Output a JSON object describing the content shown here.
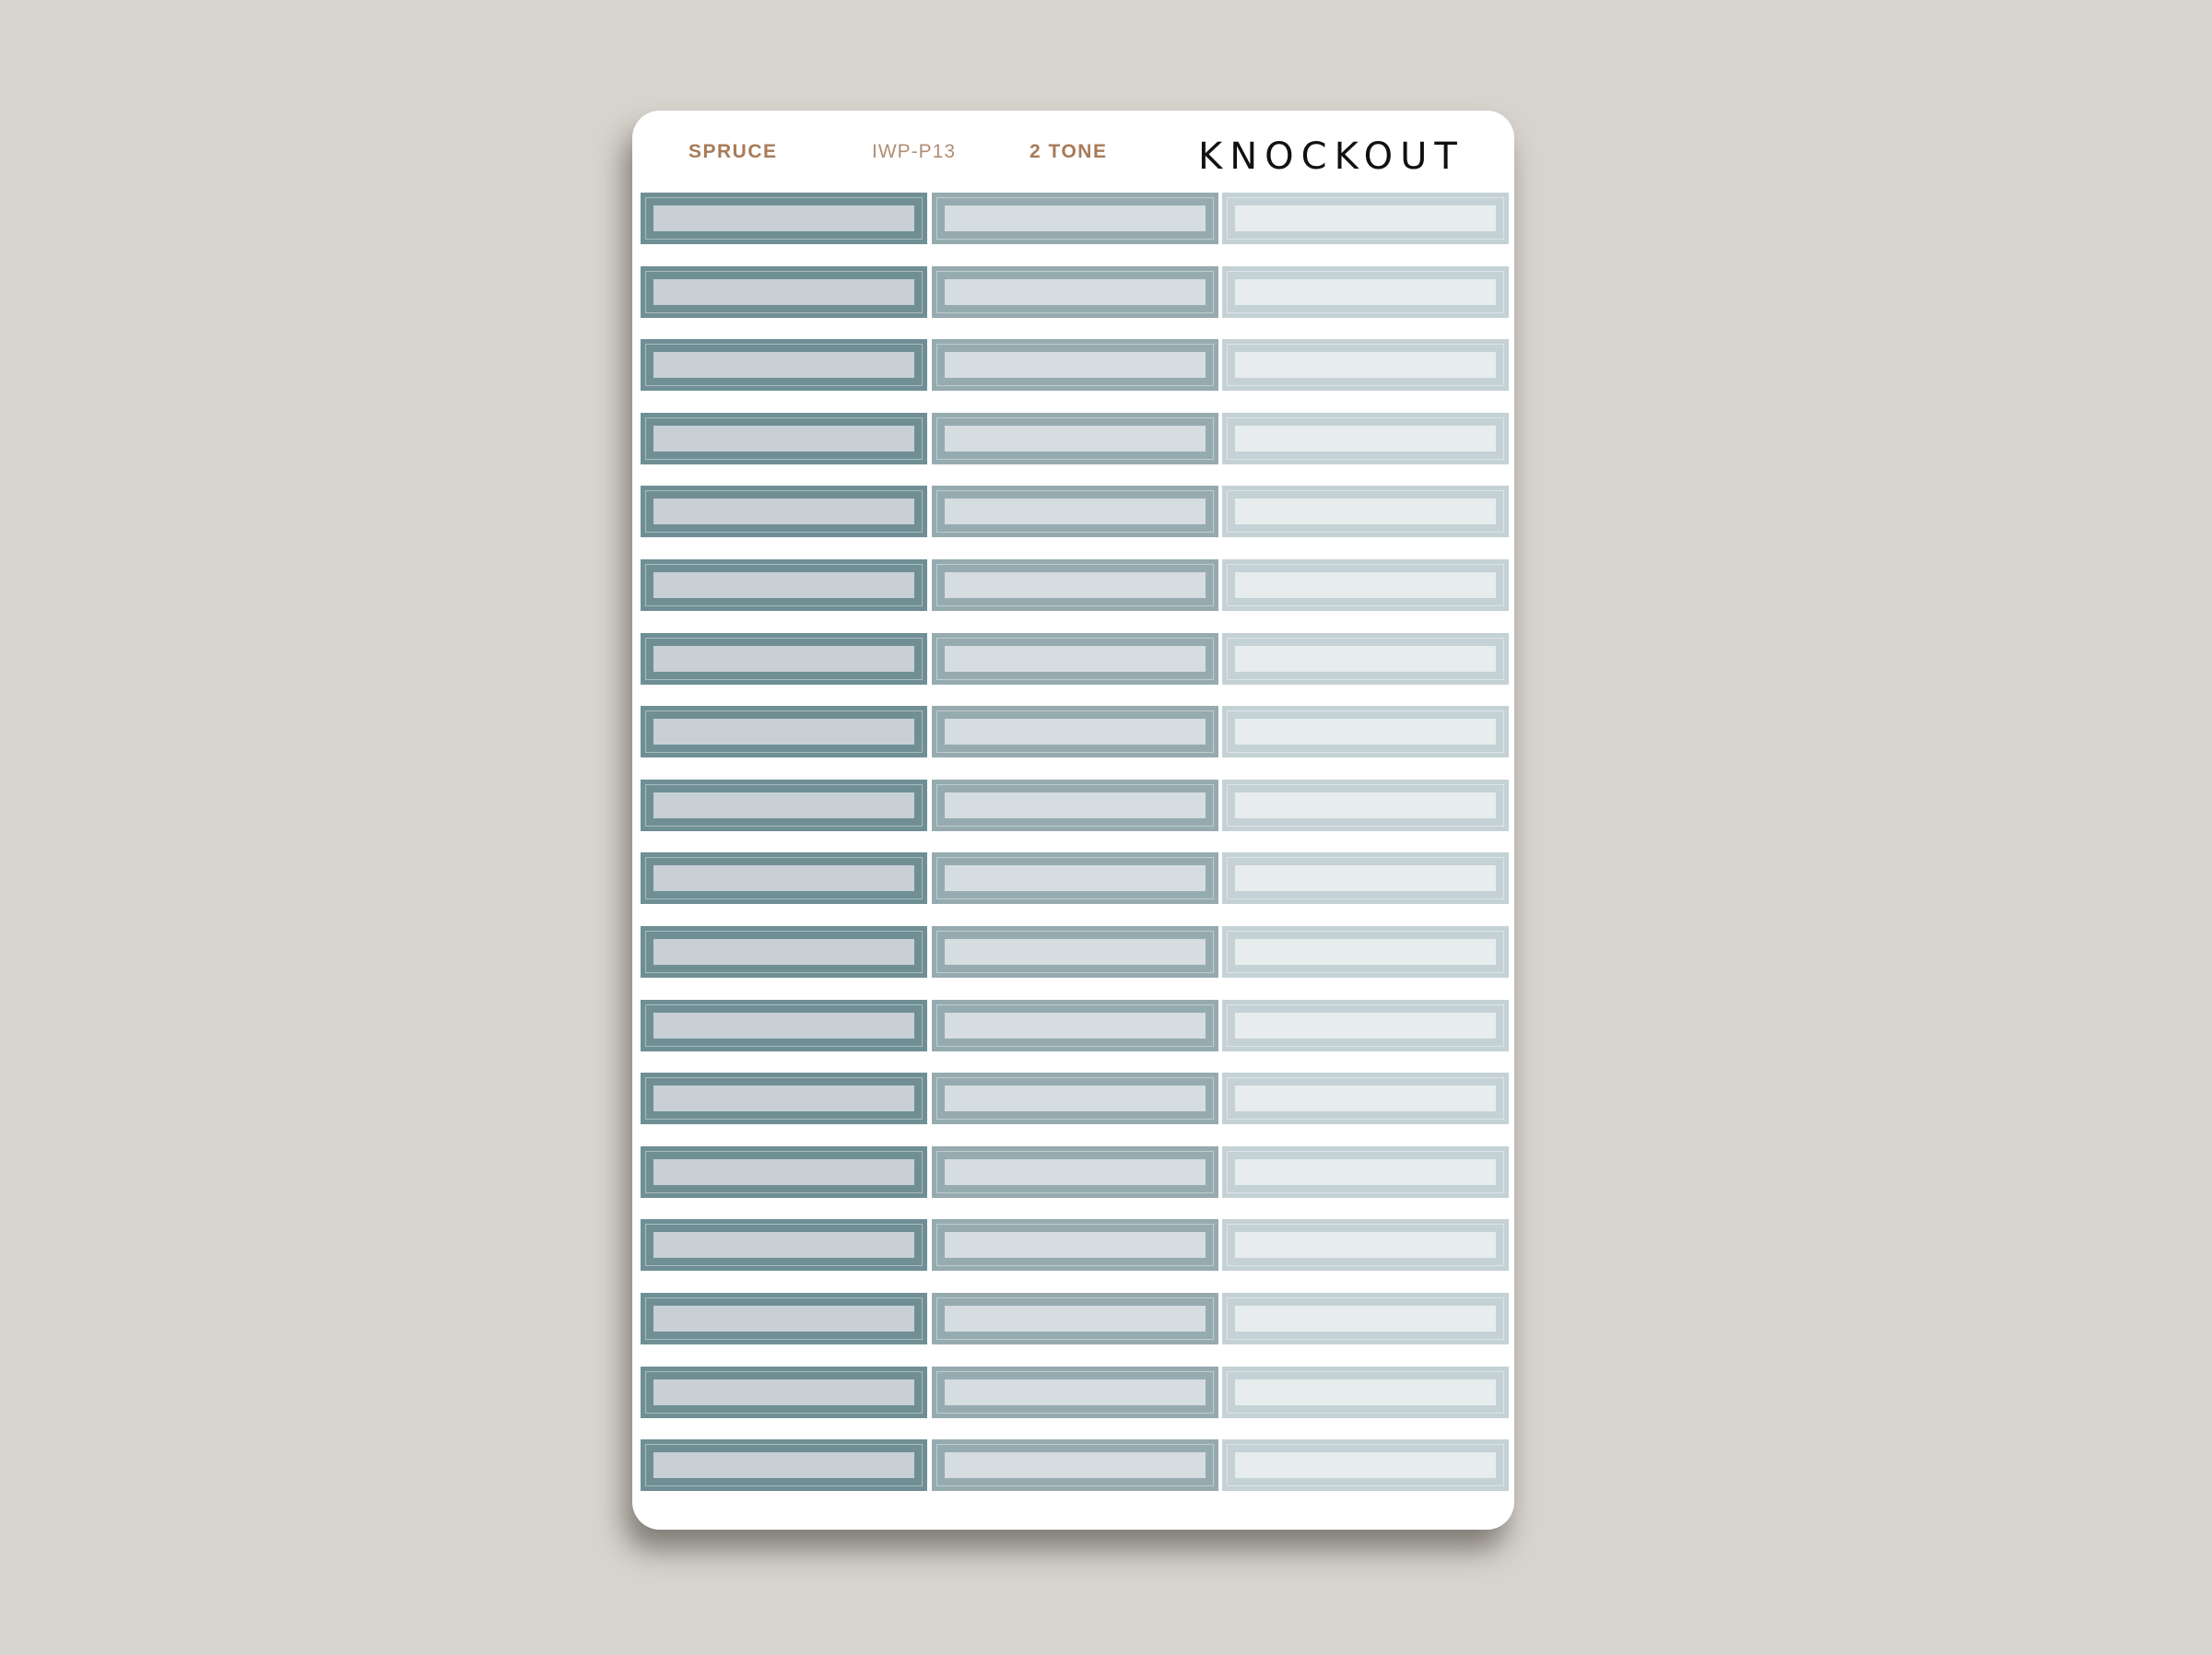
{
  "header": {
    "color_name": "SPRUCE",
    "product_code": "IWP-P13",
    "style": "2 TONE",
    "brand": "KNOCKOUT"
  },
  "colors": {
    "background": "#d7d3cd",
    "label_text": "#a87a58"
  },
  "sticker_rows": 18,
  "columns": [
    {
      "shade": "dark",
      "outer": "#6f8f95",
      "inner": "#c8d0d6"
    },
    {
      "shade": "medium",
      "outer": "#96abb0",
      "inner": "#d5dde0"
    },
    {
      "shade": "light",
      "outer": "#c5d2d5",
      "inner": "#e7eced"
    }
  ]
}
